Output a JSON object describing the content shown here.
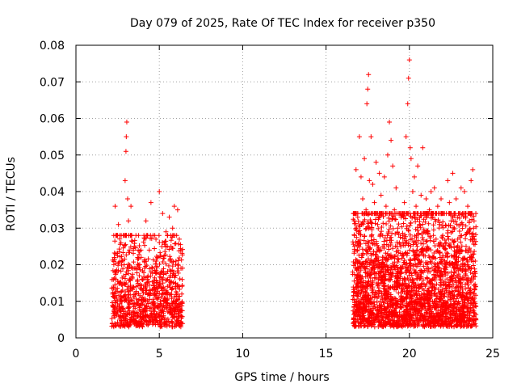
{
  "chart_data": {
    "type": "scatter",
    "title": "Day 079 of 2025, Rate Of TEC Index for receiver p350",
    "xlabel": "GPS time / hours",
    "ylabel": "ROTI / TECUs",
    "xlim": [
      0,
      25
    ],
    "ylim": [
      0,
      0.08
    ],
    "x_ticks": [
      "0",
      "5",
      "10",
      "15",
      "20",
      "25"
    ],
    "y_ticks": [
      "0",
      "0.01",
      "0.02",
      "0.03",
      "0.04",
      "0.05",
      "0.06",
      "0.07",
      "0.08"
    ],
    "grid": true,
    "marker": "+",
    "color": "#ff0000",
    "points": [
      [
        2.2,
        0.012
      ],
      [
        2.3,
        0.022
      ],
      [
        2.35,
        0.036
      ],
      [
        2.4,
        0.018
      ],
      [
        2.45,
        0.028
      ],
      [
        2.5,
        0.009
      ],
      [
        2.55,
        0.031
      ],
      [
        2.6,
        0.015
      ],
      [
        2.7,
        0.026
      ],
      [
        2.8,
        0.013
      ],
      [
        2.9,
        0.02
      ],
      [
        2.95,
        0.043
      ],
      [
        3.0,
        0.051
      ],
      [
        3.02,
        0.055
      ],
      [
        3.05,
        0.059
      ],
      [
        3.1,
        0.038
      ],
      [
        3.15,
        0.032
      ],
      [
        3.2,
        0.024
      ],
      [
        3.3,
        0.036
      ],
      [
        3.4,
        0.019
      ],
      [
        3.5,
        0.025
      ],
      [
        3.6,
        0.014
      ],
      [
        3.7,
        0.022
      ],
      [
        3.8,
        0.017
      ],
      [
        3.9,
        0.024
      ],
      [
        4.0,
        0.013
      ],
      [
        4.1,
        0.021
      ],
      [
        4.2,
        0.032
      ],
      [
        4.3,
        0.016
      ],
      [
        4.4,
        0.024
      ],
      [
        4.5,
        0.037
      ],
      [
        4.6,
        0.019
      ],
      [
        4.7,
        0.015
      ],
      [
        4.8,
        0.027
      ],
      [
        4.9,
        0.022
      ],
      [
        5.0,
        0.04
      ],
      [
        5.1,
        0.018
      ],
      [
        5.2,
        0.034
      ],
      [
        5.3,
        0.026
      ],
      [
        5.4,
        0.029
      ],
      [
        5.5,
        0.016
      ],
      [
        5.6,
        0.033
      ],
      [
        5.7,
        0.025
      ],
      [
        5.8,
        0.03
      ],
      [
        5.9,
        0.036
      ],
      [
        6.0,
        0.021
      ],
      [
        6.1,
        0.035
      ],
      [
        6.2,
        0.027
      ],
      [
        6.3,
        0.019
      ],
      [
        6.35,
        0.012
      ],
      [
        16.6,
        0.018
      ],
      [
        16.7,
        0.028
      ],
      [
        16.8,
        0.046
      ],
      [
        16.9,
        0.033
      ],
      [
        17.0,
        0.055
      ],
      [
        17.1,
        0.044
      ],
      [
        17.2,
        0.038
      ],
      [
        17.3,
        0.049
      ],
      [
        17.4,
        0.035
      ],
      [
        17.45,
        0.064
      ],
      [
        17.5,
        0.068
      ],
      [
        17.55,
        0.072
      ],
      [
        17.6,
        0.043
      ],
      [
        17.7,
        0.055
      ],
      [
        17.8,
        0.042
      ],
      [
        17.9,
        0.037
      ],
      [
        18.0,
        0.048
      ],
      [
        18.1,
        0.031
      ],
      [
        18.2,
        0.045
      ],
      [
        18.3,
        0.039
      ],
      [
        18.4,
        0.028
      ],
      [
        18.5,
        0.044
      ],
      [
        18.6,
        0.036
      ],
      [
        18.7,
        0.05
      ],
      [
        18.8,
        0.059
      ],
      [
        18.9,
        0.054
      ],
      [
        19.0,
        0.047
      ],
      [
        19.1,
        0.035
      ],
      [
        19.2,
        0.041
      ],
      [
        19.3,
        0.03
      ],
      [
        19.4,
        0.026
      ],
      [
        19.5,
        0.033
      ],
      [
        19.6,
        0.028
      ],
      [
        19.7,
        0.037
      ],
      [
        19.8,
        0.055
      ],
      [
        19.9,
        0.064
      ],
      [
        19.95,
        0.071
      ],
      [
        20.0,
        0.076
      ],
      [
        20.05,
        0.052
      ],
      [
        20.1,
        0.049
      ],
      [
        20.2,
        0.04
      ],
      [
        20.3,
        0.044
      ],
      [
        20.4,
        0.036
      ],
      [
        20.5,
        0.047
      ],
      [
        20.6,
        0.031
      ],
      [
        20.7,
        0.039
      ],
      [
        20.8,
        0.052
      ],
      [
        20.9,
        0.034
      ],
      [
        21.0,
        0.038
      ],
      [
        21.1,
        0.029
      ],
      [
        21.2,
        0.035
      ],
      [
        21.3,
        0.04
      ],
      [
        21.4,
        0.033
      ],
      [
        21.5,
        0.041
      ],
      [
        21.6,
        0.027
      ],
      [
        21.7,
        0.036
      ],
      [
        21.8,
        0.031
      ],
      [
        21.9,
        0.038
      ],
      [
        22.0,
        0.028
      ],
      [
        22.1,
        0.034
      ],
      [
        22.2,
        0.026
      ],
      [
        22.3,
        0.043
      ],
      [
        22.4,
        0.037
      ],
      [
        22.5,
        0.032
      ],
      [
        22.6,
        0.045
      ],
      [
        22.7,
        0.03
      ],
      [
        22.8,
        0.038
      ],
      [
        22.9,
        0.027
      ],
      [
        23.0,
        0.034
      ],
      [
        23.1,
        0.041
      ],
      [
        23.2,
        0.031
      ],
      [
        23.3,
        0.04
      ],
      [
        23.4,
        0.025
      ],
      [
        23.5,
        0.036
      ],
      [
        23.6,
        0.032
      ],
      [
        23.7,
        0.043
      ],
      [
        23.8,
        0.046
      ],
      [
        23.85,
        0.03
      ],
      [
        23.9,
        0.027
      ],
      [
        23.95,
        0.021
      ]
    ],
    "dense_bands": [
      {
        "x_start": 2.15,
        "x_end": 6.4,
        "y_min": 0.003,
        "y_max": 0.028,
        "count": 900,
        "seed": 7
      },
      {
        "x_start": 16.6,
        "x_end": 24.0,
        "y_min": 0.003,
        "y_max": 0.034,
        "count": 2600,
        "seed": 19
      }
    ]
  }
}
